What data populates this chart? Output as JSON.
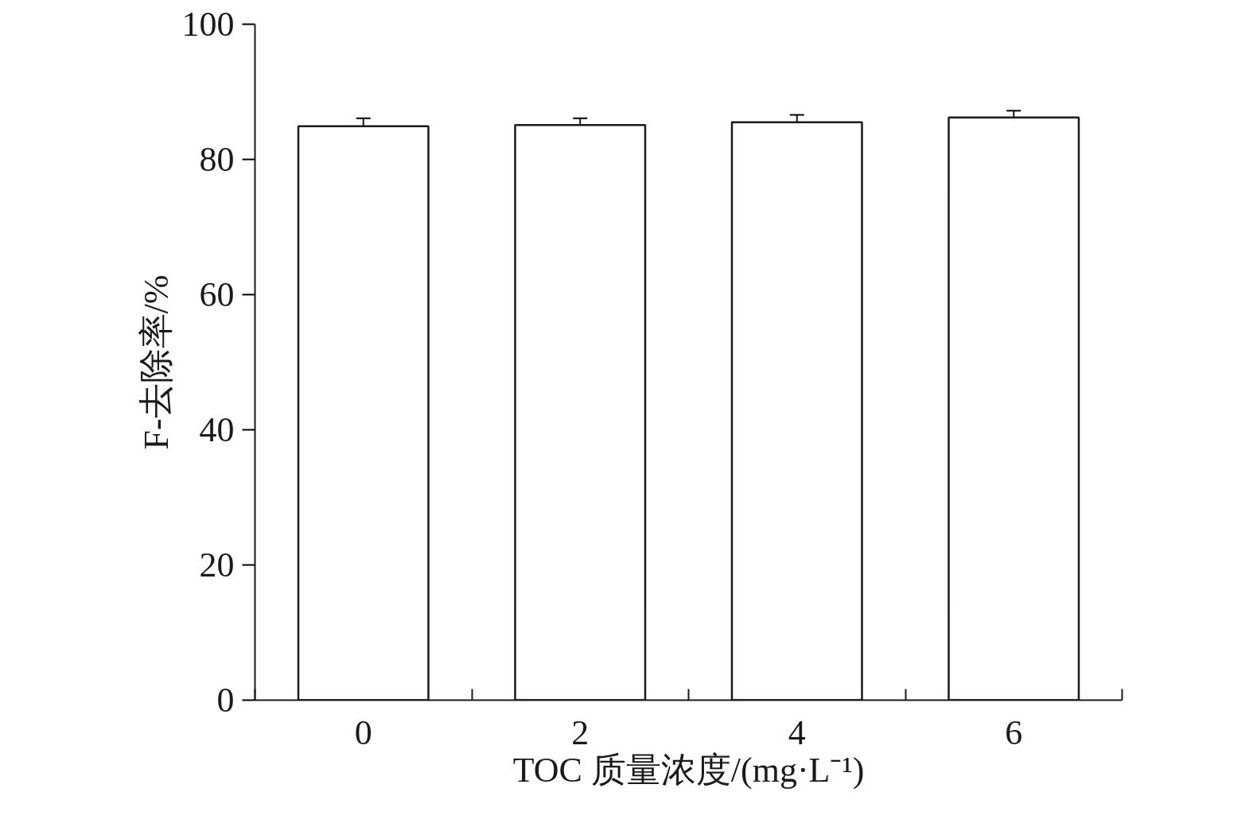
{
  "chart_data": {
    "type": "bar",
    "xlabel": "TOC 质量浓度/(mg·L⁻¹)",
    "ylabel": "F-去除率/%",
    "categories": [
      "0",
      "2",
      "4",
      "6"
    ],
    "values": [
      84.9,
      85.1,
      85.5,
      86.2
    ],
    "errors": [
      1.2,
      1.0,
      1.1,
      1.0
    ],
    "color": "#ffffff",
    "ylim": [
      0,
      100
    ],
    "yticks": [
      0,
      20,
      40,
      60,
      80,
      100
    ],
    "grid": false
  }
}
